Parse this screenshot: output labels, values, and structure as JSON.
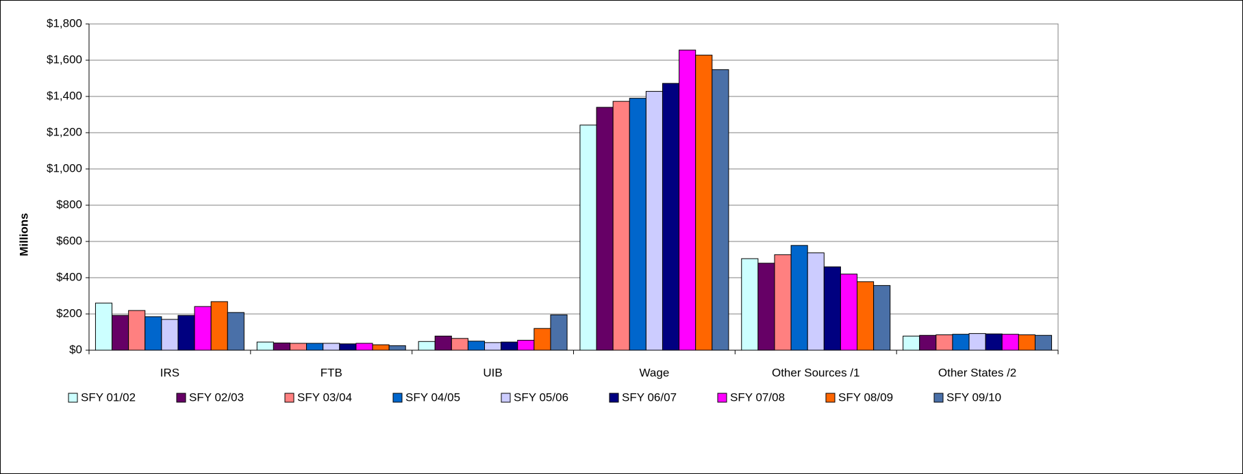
{
  "chart_data": {
    "type": "bar",
    "y_label": "Millions",
    "categories": [
      "IRS",
      "FTB",
      "UIB",
      "Wage",
      "Other Sources /1",
      "Other States /2"
    ],
    "series": [
      {
        "name": "SFY 01/02",
        "color": "#ccffff",
        "values": [
          260,
          45,
          48,
          1242,
          505,
          78
        ]
      },
      {
        "name": "SFY 02/03",
        "color": "#660066",
        "values": [
          192,
          40,
          78,
          1340,
          480,
          82
        ]
      },
      {
        "name": "SFY 03/04",
        "color": "#ff8080",
        "values": [
          219,
          38,
          65,
          1373,
          527,
          85
        ]
      },
      {
        "name": "SFY 04/05",
        "color": "#0066cc",
        "values": [
          185,
          38,
          50,
          1390,
          578,
          88
        ]
      },
      {
        "name": "SFY 05/06",
        "color": "#ccccff",
        "values": [
          170,
          38,
          42,
          1428,
          537,
          92
        ]
      },
      {
        "name": "SFY 06/07",
        "color": "#000080",
        "values": [
          192,
          35,
          45,
          1472,
          460,
          90
        ]
      },
      {
        "name": "SFY 07/08",
        "color": "#ff00ff",
        "values": [
          241,
          38,
          55,
          1656,
          420,
          88
        ]
      },
      {
        "name": "SFY 08/09",
        "color": "#ff6600",
        "values": [
          268,
          30,
          120,
          1628,
          378,
          85
        ]
      },
      {
        "name": "SFY 09/10",
        "color": "#4a70a8",
        "values": [
          208,
          25,
          195,
          1548,
          357,
          82
        ]
      }
    ],
    "ylim": [
      0,
      1800
    ],
    "yticks": [
      {
        "value": 0,
        "label": "$0"
      },
      {
        "value": 200,
        "label": "$200"
      },
      {
        "value": 400,
        "label": "$400"
      },
      {
        "value": 600,
        "label": "$600"
      },
      {
        "value": 800,
        "label": "$800"
      },
      {
        "value": 1000,
        "label": "$1,000"
      },
      {
        "value": 1200,
        "label": "$1,200"
      },
      {
        "value": 1400,
        "label": "$1,400"
      },
      {
        "value": 1600,
        "label": "$1,600"
      },
      {
        "value": 1800,
        "label": "$1,800"
      }
    ],
    "grid": true,
    "legend": "bottom"
  }
}
